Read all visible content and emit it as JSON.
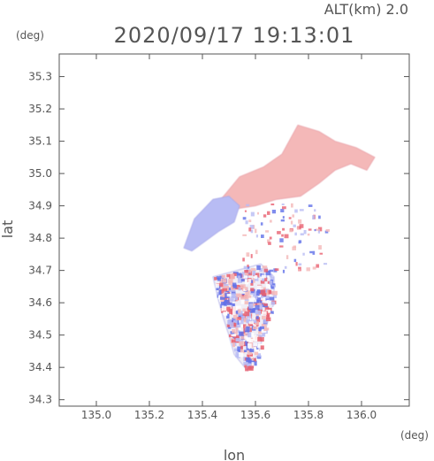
{
  "header": {
    "altitude": "ALT(km)  2.0",
    "timestamp": "2020/09/17 19:13:01"
  },
  "chart_data": {
    "type": "heatmap",
    "title": "2020/09/17 19:13:01",
    "xlabel": "lon",
    "ylabel": "lat",
    "x_unit": "(deg)",
    "y_unit": "(deg)",
    "xlim": [
      134.86,
      136.18
    ],
    "ylim": [
      34.28,
      35.37
    ],
    "x_ticks": [
      "135.0",
      "135.2",
      "135.4",
      "135.6",
      "135.8",
      "136.0"
    ],
    "y_ticks": [
      "34.3",
      "34.4",
      "34.5",
      "34.6",
      "34.7",
      "34.8",
      "34.9",
      "35.0",
      "35.1",
      "35.2",
      "35.3"
    ],
    "grid": false,
    "colors": {
      "positive": "#f4b8b8",
      "negative": "#b8bcf4",
      "strong_positive": "#e86070",
      "strong_negative": "#6070e8"
    },
    "regions": [
      {
        "name": "northern positive area",
        "sign": "positive",
        "polygon": [
          [
            135.47,
            34.92
          ],
          [
            135.54,
            34.99
          ],
          [
            135.63,
            35.02
          ],
          [
            135.7,
            35.06
          ],
          [
            135.76,
            35.15
          ],
          [
            135.84,
            35.13
          ],
          [
            135.9,
            35.1
          ],
          [
            135.98,
            35.08
          ],
          [
            136.05,
            35.05
          ],
          [
            136.02,
            35.01
          ],
          [
            135.96,
            35.03
          ],
          [
            135.9,
            35.01
          ],
          [
            135.84,
            34.97
          ],
          [
            135.77,
            34.93
          ],
          [
            135.68,
            34.92
          ],
          [
            135.6,
            34.9
          ],
          [
            135.52,
            34.89
          ]
        ]
      },
      {
        "name": "northwest negative area",
        "sign": "negative",
        "polygon": [
          [
            135.33,
            34.77
          ],
          [
            135.37,
            34.86
          ],
          [
            135.44,
            34.92
          ],
          [
            135.5,
            34.93
          ],
          [
            135.54,
            34.9
          ],
          [
            135.52,
            34.85
          ],
          [
            135.46,
            34.82
          ],
          [
            135.41,
            34.79
          ],
          [
            135.36,
            34.76
          ]
        ]
      },
      {
        "name": "southern mixed cells",
        "sign": "mixed",
        "polygon": [
          [
            135.44,
            34.68
          ],
          [
            135.53,
            34.7
          ],
          [
            135.62,
            34.72
          ],
          [
            135.67,
            34.68
          ],
          [
            135.67,
            34.6
          ],
          [
            135.63,
            34.5
          ],
          [
            135.61,
            34.44
          ],
          [
            135.57,
            34.39
          ],
          [
            135.52,
            34.44
          ],
          [
            135.5,
            34.5
          ],
          [
            135.48,
            34.55
          ],
          [
            135.46,
            34.61
          ]
        ]
      }
    ]
  }
}
